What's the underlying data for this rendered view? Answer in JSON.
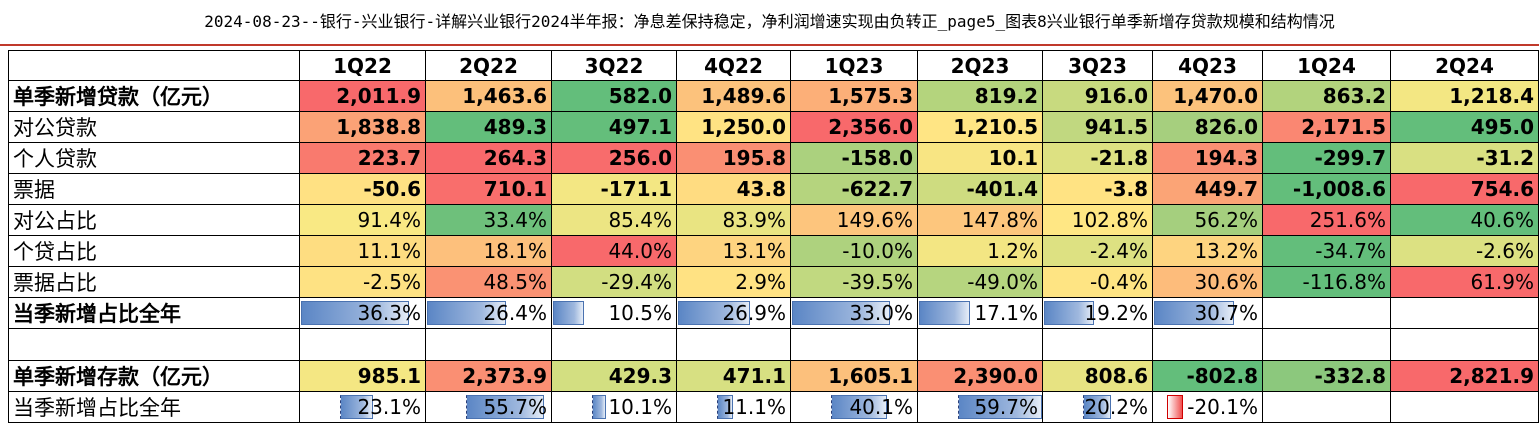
{
  "title": "2024-08-23--银行-兴业银行-详解兴业银行2024半年报：净息差保持稳定，净利润增速实现由负转正_page5_图表8兴业银行单季新增存贷款规模和结构情况",
  "quarters": [
    "1Q22",
    "2Q22",
    "3Q22",
    "4Q22",
    "1Q23",
    "2Q23",
    "3Q23",
    "4Q23",
    "1Q24",
    "2Q24"
  ],
  "rows": [
    {
      "label": "单季新增贷款（亿元）",
      "bold_label": true,
      "bold_values": true,
      "values": [
        "2,011.9",
        "1,463.6",
        "582.0",
        "1,489.6",
        "1,575.3",
        "819.2",
        "916.0",
        "1,470.0",
        "863.2",
        "1,218.4"
      ],
      "colors": [
        "#f8696b",
        "#fcc07b",
        "#63be7b",
        "#fcc27c",
        "#fcaf78",
        "#b4d47d",
        "#c8da7f",
        "#fcc27c",
        "#b2d37d",
        "#f3e783"
      ]
    },
    {
      "label": "对公贷款",
      "bold_label": false,
      "bold_values": true,
      "values": [
        "1,838.8",
        "489.3",
        "497.1",
        "1,250.0",
        "2,356.0",
        "1,210.5",
        "941.5",
        "826.0",
        "2,171.5",
        "495.0"
      ],
      "colors": [
        "#fba276",
        "#63be7b",
        "#64be7b",
        "#ffe383",
        "#f8696b",
        "#ffe584",
        "#c1d880",
        "#a6cf7e",
        "#fa8772",
        "#63be7b"
      ]
    },
    {
      "label": "个人贷款",
      "bold_label": false,
      "bold_values": true,
      "values": [
        "223.7",
        "264.3",
        "256.0",
        "195.8",
        "-158.0",
        "10.1",
        "-21.8",
        "194.3",
        "-299.7",
        "-31.2"
      ],
      "colors": [
        "#f97a6e",
        "#f8696b",
        "#f86c6c",
        "#fa8f73",
        "#abd17e",
        "#f8e583",
        "#dde182",
        "#fa8f73",
        "#63be7b",
        "#d9e082"
      ]
    },
    {
      "label": "票据",
      "bold_label": false,
      "bold_values": true,
      "values": [
        "-50.6",
        "710.1",
        "-171.1",
        "43.8",
        "-622.7",
        "-401.4",
        "-3.8",
        "449.7",
        "-1,008.6",
        "754.6"
      ],
      "colors": [
        "#ffe183",
        "#f96e6c",
        "#f3e783",
        "#ffdc81",
        "#b5d47e",
        "#cedc80",
        "#ffe383",
        "#fba476",
        "#63be7b",
        "#f8696b"
      ]
    },
    {
      "label": "对公占比",
      "bold_label": false,
      "bold_values": false,
      "values": [
        "91.4%",
        "33.4%",
        "85.4%",
        "83.9%",
        "149.6%",
        "147.8%",
        "102.8%",
        "56.2%",
        "251.6%",
        "40.6%"
      ],
      "colors": [
        "#f9e984",
        "#6ec07b",
        "#ecE583",
        "#e9e482",
        "#fdc57d",
        "#fdc67d",
        "#ffe784",
        "#a5cf7e",
        "#f8696b",
        "#63be7b"
      ]
    },
    {
      "label": "个贷占比",
      "bold_label": false,
      "bold_values": false,
      "values": [
        "11.1%",
        "18.1%",
        "44.0%",
        "13.1%",
        "-10.0%",
        "1.2%",
        "-2.4%",
        "13.2%",
        "-34.7%",
        "-2.6%"
      ],
      "colors": [
        "#fedd81",
        "#fdc07c",
        "#f8696b",
        "#fed480",
        "#aed27e",
        "#f3e683",
        "#dde182",
        "#fed480",
        "#63be7b",
        "#dce182"
      ]
    },
    {
      "label": "票据占比",
      "bold_label": false,
      "bold_values": false,
      "values": [
        "-2.5%",
        "48.5%",
        "-29.4%",
        "2.9%",
        "-39.5%",
        "-49.0%",
        "-0.4%",
        "30.6%",
        "-116.8%",
        "61.9%"
      ],
      "colors": [
        "#fee283",
        "#fa9273",
        "#d2de81",
        "#ffe283",
        "#c1d980",
        "#b6d57f",
        "#fee483",
        "#fdbc7b",
        "#63be7b",
        "#f8696b"
      ]
    },
    {
      "label": "当季新增占比全年",
      "bold_label": true,
      "bold_values": false,
      "bar": true,
      "values": [
        "36.3%",
        "26.4%",
        "10.5%",
        "26.9%",
        "33.0%",
        "17.1%",
        "19.2%",
        "30.7%",
        "",
        ""
      ],
      "fractions": [
        0.363,
        0.264,
        0.105,
        0.269,
        0.33,
        0.171,
        0.192,
        0.307,
        0,
        0
      ]
    },
    {
      "label": "",
      "blank": true,
      "values": [
        "",
        "",
        "",
        "",
        "",
        "",
        "",
        "",
        "",
        ""
      ]
    },
    {
      "label": "单季新增存款（亿元）",
      "bold_label": true,
      "bold_values": true,
      "values": [
        "985.1",
        "2,373.9",
        "429.3",
        "471.1",
        "1,605.1",
        "2,390.0",
        "808.6",
        "-802.8",
        "-332.8",
        "2,821.9"
      ],
      "colors": [
        "#f4e783",
        "#fa8f73",
        "#d3df81",
        "#d7e082",
        "#fcc07c",
        "#fa8f73",
        "#e7e382",
        "#63be7b",
        "#8cc87d",
        "#f8696b"
      ]
    },
    {
      "label": "当季新增占比全年",
      "bold_label": false,
      "bold_values": false,
      "bar": true,
      "values": [
        "23.1%",
        "55.7%",
        "10.1%",
        "11.1%",
        "40.1%",
        "59.7%",
        "20.2%",
        "-20.1%",
        "",
        ""
      ],
      "fractions": [
        0.231,
        0.557,
        0.101,
        0.111,
        0.401,
        0.597,
        0.202,
        -0.201,
        0,
        0
      ]
    }
  ]
}
